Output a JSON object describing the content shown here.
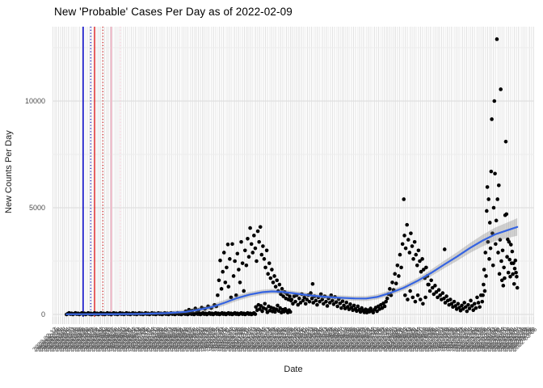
{
  "chart_data": {
    "type": "scatter",
    "title": "New 'Probable' Cases Per Day as of 2022-02-09",
    "xlabel": "Date",
    "ylabel": "New Counts Per Day",
    "y_axis": {
      "ticks": [
        {
          "value": 0,
          "label": "0"
        },
        {
          "value": 5000,
          "label": "5000"
        },
        {
          "value": 10000,
          "label": "10000"
        }
      ],
      "minor_ticks": [
        2500,
        7500,
        12500
      ],
      "limits": [
        0,
        13200
      ]
    },
    "x_axis": {
      "data_start_date": "2020-03-01",
      "end_date": "2022-02-09",
      "tick_step_days": 3,
      "first_tick_day": -18,
      "last_tick_day": 736,
      "label_rotation_deg": 45
    },
    "style": {
      "point_color": "#000000",
      "point_radius": 2.3,
      "smooth_color": "#3564E2",
      "ribbon_color": "#787878",
      "ribbon_opacity": 0.32,
      "grid_major_color": "#e0e0e0",
      "grid_minor_color": "#ececec",
      "panel_stripe_color": "#e3e3e3"
    },
    "vlines": [
      {
        "day": 29,
        "color": "#1111CC",
        "dash": "solid",
        "width": 1.6
      },
      {
        "day": 41,
        "color": "#2222BB",
        "dash": "dotted",
        "width": 1.4
      },
      {
        "day": 47,
        "color": "#DD1111",
        "dash": "solid",
        "width": 1.3
      },
      {
        "day": 60,
        "color": "#CC2222",
        "dash": "dotted",
        "width": 1.3
      },
      {
        "day": 73,
        "color": "#F2AFC1",
        "dash": "solid",
        "width": 1.6
      },
      {
        "day": 87,
        "color": "#F6CAD6",
        "dash": "dotted",
        "width": 1.4
      }
    ],
    "zero_run": {
      "day_start": 3,
      "day_end": 299,
      "step_days": 2,
      "values_cycle": [
        0,
        35,
        70,
        15,
        50
      ]
    },
    "points": [
      [
        190,
        150
      ],
      [
        195,
        220
      ],
      [
        200,
        180
      ],
      [
        205,
        280
      ],
      [
        210,
        200
      ],
      [
        215,
        320
      ],
      [
        220,
        260
      ],
      [
        225,
        380
      ],
      [
        230,
        300
      ],
      [
        235,
        450
      ],
      [
        238,
        380
      ],
      [
        240,
        900
      ],
      [
        242,
        1600
      ],
      [
        244,
        2530
      ],
      [
        246,
        1200
      ],
      [
        248,
        2000
      ],
      [
        250,
        2900
      ],
      [
        252,
        1500
      ],
      [
        254,
        2200
      ],
      [
        256,
        3280
      ],
      [
        257,
        1300
      ],
      [
        259,
        2600
      ],
      [
        261,
        800
      ],
      [
        263,
        3300
      ],
      [
        265,
        1800
      ],
      [
        267,
        2500
      ],
      [
        269,
        900
      ],
      [
        271,
        2850
      ],
      [
        273,
        2100
      ],
      [
        275,
        1500
      ],
      [
        277,
        3400
      ],
      [
        279,
        2400
      ],
      [
        281,
        1100
      ],
      [
        283,
        3000
      ],
      [
        285,
        2300
      ],
      [
        287,
        3550
      ],
      [
        289,
        2700
      ],
      [
        291,
        4050
      ],
      [
        293,
        3300
      ],
      [
        295,
        2900
      ],
      [
        297,
        3700
      ],
      [
        299,
        3100
      ],
      [
        301,
        2500
      ],
      [
        303,
        3900
      ],
      [
        305,
        3400
      ],
      [
        307,
        4100
      ],
      [
        309,
        2800
      ],
      [
        311,
        3200
      ],
      [
        313,
        2600
      ],
      [
        315,
        2200
      ],
      [
        317,
        3000
      ],
      [
        319,
        1900
      ],
      [
        321,
        2400
      ],
      [
        323,
        1700
      ],
      [
        325,
        2100
      ],
      [
        327,
        1500
      ],
      [
        329,
        1800
      ],
      [
        331,
        1300
      ],
      [
        333,
        1600
      ],
      [
        335,
        1100
      ],
      [
        337,
        1400
      ],
      [
        339,
        950
      ],
      [
        341,
        1200
      ],
      [
        343,
        850
      ],
      [
        345,
        1050
      ],
      [
        347,
        750
      ],
      [
        349,
        950
      ],
      [
        351,
        700
      ],
      [
        353,
        850
      ],
      [
        355,
        650
      ],
      [
        300,
        350
      ],
      [
        302,
        200
      ],
      [
        304,
        450
      ],
      [
        306,
        250
      ],
      [
        308,
        400
      ],
      [
        310,
        150
      ],
      [
        312,
        300
      ],
      [
        314,
        500
      ],
      [
        316,
        250
      ],
      [
        318,
        100
      ],
      [
        320,
        380
      ],
      [
        322,
        180
      ],
      [
        324,
        320
      ],
      [
        326,
        140
      ],
      [
        328,
        280
      ],
      [
        330,
        120
      ],
      [
        332,
        240
      ],
      [
        334,
        420
      ],
      [
        336,
        160
      ],
      [
        338,
        300
      ],
      [
        340,
        90
      ],
      [
        342,
        220
      ],
      [
        344,
        130
      ],
      [
        346,
        260
      ],
      [
        348,
        170
      ],
      [
        350,
        90
      ],
      [
        352,
        200
      ],
      [
        354,
        120
      ],
      [
        356,
        700
      ],
      [
        358,
        500
      ],
      [
        360,
        850
      ],
      [
        362,
        600
      ],
      [
        364,
        900
      ],
      [
        366,
        450
      ],
      [
        368,
        750
      ],
      [
        370,
        550
      ],
      [
        372,
        950
      ],
      [
        374,
        650
      ],
      [
        376,
        800
      ],
      [
        378,
        500
      ],
      [
        380,
        700
      ],
      [
        382,
        900
      ],
      [
        384,
        600
      ],
      [
        386,
        1000
      ],
      [
        388,
        750
      ],
      [
        389,
        1430
      ],
      [
        390,
        550
      ],
      [
        392,
        850
      ],
      [
        394,
        650
      ],
      [
        396,
        450
      ],
      [
        398,
        800
      ],
      [
        400,
        600
      ],
      [
        402,
        950
      ],
      [
        404,
        700
      ],
      [
        406,
        500
      ],
      [
        408,
        850
      ],
      [
        410,
        600
      ],
      [
        412,
        400
      ],
      [
        414,
        750
      ],
      [
        416,
        550
      ],
      [
        418,
        900
      ],
      [
        420,
        650
      ],
      [
        422,
        480
      ],
      [
        424,
        820
      ],
      [
        426,
        580
      ],
      [
        428,
        380
      ],
      [
        430,
        720
      ],
      [
        432,
        520
      ],
      [
        434,
        300
      ],
      [
        436,
        620
      ],
      [
        438,
        420
      ],
      [
        440,
        280
      ],
      [
        442,
        560
      ],
      [
        444,
        360
      ],
      [
        446,
        240
      ],
      [
        448,
        480
      ],
      [
        450,
        320
      ],
      [
        452,
        200
      ],
      [
        454,
        420
      ],
      [
        456,
        260
      ],
      [
        458,
        160
      ],
      [
        460,
        380
      ],
      [
        462,
        220
      ],
      [
        464,
        120
      ],
      [
        466,
        300
      ],
      [
        468,
        180
      ],
      [
        470,
        100
      ],
      [
        472,
        240
      ],
      [
        474,
        90
      ],
      [
        476,
        200
      ],
      [
        478,
        130
      ],
      [
        480,
        280
      ],
      [
        482,
        160
      ],
      [
        484,
        90
      ],
      [
        486,
        230
      ],
      [
        488,
        320
      ],
      [
        490,
        150
      ],
      [
        492,
        380
      ],
      [
        494,
        250
      ],
      [
        496,
        450
      ],
      [
        498,
        300
      ],
      [
        500,
        520
      ],
      [
        502,
        380
      ],
      [
        504,
        600
      ],
      [
        506,
        750
      ],
      [
        508,
        950
      ],
      [
        510,
        1200
      ],
      [
        512,
        900
      ],
      [
        514,
        1500
      ],
      [
        516,
        1150
      ],
      [
        518,
        1900
      ],
      [
        520,
        1450
      ],
      [
        522,
        2300
      ],
      [
        524,
        1800
      ],
      [
        526,
        2800
      ],
      [
        528,
        2200
      ],
      [
        530,
        3300
      ],
      [
        532,
        5400
      ],
      [
        533,
        3700
      ],
      [
        535,
        3100
      ],
      [
        537,
        4200
      ],
      [
        539,
        3500
      ],
      [
        541,
        2900
      ],
      [
        543,
        3800
      ],
      [
        545,
        3200
      ],
      [
        547,
        2600
      ],
      [
        549,
        3400
      ],
      [
        551,
        2800
      ],
      [
        553,
        2300
      ],
      [
        555,
        3000
      ],
      [
        557,
        2500
      ],
      [
        559,
        2000
      ],
      [
        561,
        2600
      ],
      [
        563,
        2100
      ],
      [
        565,
        1700
      ],
      [
        567,
        2200
      ],
      [
        569,
        1800
      ],
      [
        534,
        900
      ],
      [
        538,
        700
      ],
      [
        542,
        1100
      ],
      [
        546,
        800
      ],
      [
        550,
        600
      ],
      [
        554,
        900
      ],
      [
        558,
        700
      ],
      [
        562,
        500
      ],
      [
        566,
        800
      ],
      [
        570,
        1400
      ],
      [
        571,
        1400
      ],
      [
        573,
        1100
      ],
      [
        575,
        1600
      ],
      [
        577,
        1250
      ],
      [
        579,
        950
      ],
      [
        581,
        1350
      ],
      [
        583,
        1050
      ],
      [
        585,
        800
      ],
      [
        587,
        1150
      ],
      [
        589,
        900
      ],
      [
        591,
        700
      ],
      [
        593,
        1000
      ],
      [
        595,
        750
      ],
      [
        596,
        3050
      ],
      [
        597,
        550
      ],
      [
        599,
        850
      ],
      [
        601,
        650
      ],
      [
        603,
        450
      ],
      [
        605,
        700
      ],
      [
        607,
        500
      ],
      [
        609,
        350
      ],
      [
        611,
        600
      ],
      [
        613,
        400
      ],
      [
        615,
        250
      ],
      [
        617,
        500
      ],
      [
        619,
        320
      ],
      [
        621,
        180
      ],
      [
        623,
        420
      ],
      [
        625,
        260
      ],
      [
        627,
        550
      ],
      [
        629,
        350
      ],
      [
        631,
        150
      ],
      [
        633,
        450
      ],
      [
        635,
        280
      ],
      [
        637,
        650
      ],
      [
        639,
        400
      ],
      [
        641,
        200
      ],
      [
        643,
        500
      ],
      [
        645,
        300
      ],
      [
        647,
        800
      ],
      [
        649,
        550
      ],
      [
        651,
        350
      ],
      [
        653,
        900
      ],
      [
        655,
        600
      ],
      [
        656,
        900
      ],
      [
        657,
        1400
      ],
      [
        658,
        2100
      ],
      [
        659,
        1100
      ],
      [
        660,
        2900
      ],
      [
        661,
        1800
      ],
      [
        662,
        4850
      ],
      [
        663,
        5970
      ],
      [
        664,
        3400
      ],
      [
        665,
        5400
      ],
      [
        666,
        2600
      ],
      [
        667,
        4300
      ],
      [
        668,
        3100
      ],
      [
        669,
        6700
      ],
      [
        670,
        9150
      ],
      [
        671,
        3800
      ],
      [
        672,
        2300
      ],
      [
        673,
        5000
      ],
      [
        674,
        10000
      ],
      [
        675,
        6600
      ],
      [
        676,
        3300
      ],
      [
        677,
        4400
      ],
      [
        678,
        12900
      ],
      [
        679,
        5400
      ],
      [
        680,
        2900
      ],
      [
        681,
        6050
      ],
      [
        682,
        1900
      ],
      [
        683,
        3500
      ],
      [
        684,
        10550
      ],
      [
        685,
        2500
      ],
      [
        686,
        1600
      ],
      [
        687,
        3000
      ],
      [
        688,
        1350
      ],
      [
        689,
        2200
      ],
      [
        690,
        1700
      ],
      [
        691,
        4650
      ],
      [
        692,
        8100
      ],
      [
        693,
        4700
      ],
      [
        694,
        2700
      ],
      [
        695,
        3520
      ],
      [
        696,
        1960
      ],
      [
        697,
        3400
      ],
      [
        698,
        2570
      ],
      [
        699,
        1770
      ],
      [
        700,
        3270
      ],
      [
        701,
        2400
      ],
      [
        702,
        2950
      ],
      [
        703,
        1890
      ],
      [
        704,
        2400
      ],
      [
        705,
        1430
      ],
      [
        706,
        2150
      ],
      [
        707,
        2530
      ],
      [
        708,
        1960
      ],
      [
        709,
        1770
      ],
      [
        710,
        1250
      ]
    ],
    "smooth": [
      [
        3,
        10,
        50
      ],
      [
        40,
        12,
        52
      ],
      [
        80,
        15,
        55
      ],
      [
        120,
        25,
        65
      ],
      [
        160,
        60,
        80
      ],
      [
        190,
        120,
        100
      ],
      [
        210,
        220,
        115
      ],
      [
        230,
        340,
        125
      ],
      [
        251,
        550,
        130
      ],
      [
        270,
        760,
        130
      ],
      [
        290,
        930,
        125
      ],
      [
        310,
        1040,
        120
      ],
      [
        325,
        1080,
        115
      ],
      [
        340,
        1060,
        110
      ],
      [
        360,
        990,
        105
      ],
      [
        380,
        910,
        100
      ],
      [
        400,
        850,
        100
      ],
      [
        420,
        800,
        105
      ],
      [
        440,
        770,
        108
      ],
      [
        455,
        750,
        110
      ],
      [
        473,
        745,
        115
      ],
      [
        490,
        820,
        118
      ],
      [
        510,
        1000,
        120
      ],
      [
        532,
        1250,
        125
      ],
      [
        555,
        1600,
        140
      ],
      [
        575,
        1950,
        155
      ],
      [
        596,
        2350,
        175
      ],
      [
        615,
        2700,
        200
      ],
      [
        635,
        3100,
        230
      ],
      [
        655,
        3450,
        270
      ],
      [
        675,
        3750,
        320
      ],
      [
        695,
        3950,
        370
      ],
      [
        710,
        4100,
        410
      ]
    ]
  }
}
